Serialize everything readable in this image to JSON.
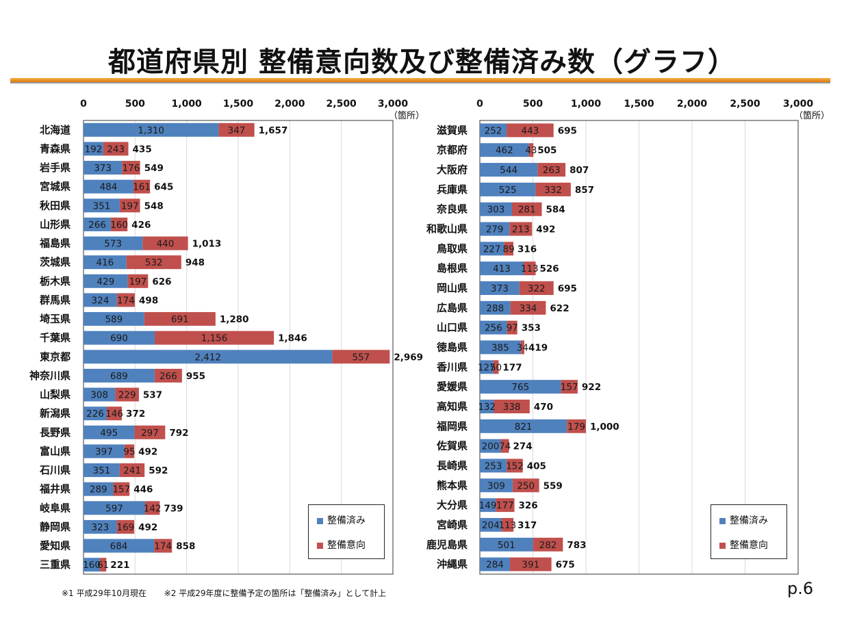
{
  "title": "都道府県別 整備意向数及び整備済み数（グラフ）",
  "colors": {
    "done": "#4f81bd",
    "intent": "#c0504d"
  },
  "legend": {
    "done_label": "整備済み",
    "intent_label": "整備意向"
  },
  "footnote": {
    "note1": "※1 平成29年10月現在",
    "note2": "※2 平成29年度に整備予定の箇所は「整備済み」として計上"
  },
  "page_number": "p.6",
  "chart_data": [
    {
      "type": "bar",
      "orientation": "horizontal",
      "stacked": true,
      "unit": "（箇所）",
      "xlim": [
        0,
        3000
      ],
      "ticks": [
        0,
        500,
        1000,
        1500,
        2000,
        2500,
        3000
      ],
      "tick_labels": [
        "0",
        "500",
        "1,000",
        "1,500",
        "2,000",
        "2,500",
        "3,000"
      ],
      "categories": [
        "北海道",
        "青森県",
        "岩手県",
        "宮城県",
        "秋田県",
        "山形県",
        "福島県",
        "茨城県",
        "栃木県",
        "群馬県",
        "埼玉県",
        "千葉県",
        "東京都",
        "神奈川県",
        "山梨県",
        "新潟県",
        "長野県",
        "富山県",
        "石川県",
        "福井県",
        "岐阜県",
        "静岡県",
        "愛知県",
        "三重県"
      ],
      "series": [
        {
          "name": "整備済み",
          "values": [
            1310,
            192,
            373,
            484,
            351,
            266,
            573,
            416,
            429,
            324,
            589,
            690,
            2412,
            689,
            308,
            226,
            495,
            397,
            351,
            289,
            597,
            323,
            684,
            160
          ]
        },
        {
          "name": "整備意向",
          "values": [
            347,
            243,
            176,
            161,
            197,
            160,
            440,
            532,
            197,
            174,
            691,
            1156,
            557,
            266,
            229,
            146,
            297,
            95,
            241,
            157,
            142,
            169,
            174,
            61
          ]
        }
      ],
      "totals": [
        1657,
        435,
        549,
        645,
        548,
        426,
        1013,
        948,
        626,
        498,
        1280,
        1846,
        2969,
        955,
        537,
        372,
        792,
        492,
        592,
        446,
        739,
        492,
        858,
        221
      ]
    },
    {
      "type": "bar",
      "orientation": "horizontal",
      "stacked": true,
      "unit": "（箇所）",
      "xlim": [
        0,
        3000
      ],
      "ticks": [
        0,
        500,
        1000,
        1500,
        2000,
        2500,
        3000
      ],
      "tick_labels": [
        "0",
        "500",
        "1,000",
        "1,500",
        "2,000",
        "2,500",
        "3,000"
      ],
      "categories": [
        "滋賀県",
        "京都府",
        "大阪府",
        "兵庫県",
        "奈良県",
        "和歌山県",
        "鳥取県",
        "島根県",
        "岡山県",
        "広島県",
        "山口県",
        "徳島県",
        "香川県",
        "愛媛県",
        "高知県",
        "福岡県",
        "佐賀県",
        "長崎県",
        "熊本県",
        "大分県",
        "宮崎県",
        "鹿児島県",
        "沖縄県"
      ],
      "series": [
        {
          "name": "整備済み",
          "values": [
            252,
            462,
            544,
            525,
            303,
            279,
            227,
            413,
            373,
            288,
            256,
            385,
            127,
            765,
            132,
            821,
            200,
            253,
            309,
            149,
            204,
            501,
            284
          ]
        },
        {
          "name": "整備意向",
          "values": [
            443,
            43,
            263,
            332,
            281,
            213,
            89,
            113,
            322,
            334,
            97,
            34,
            50,
            157,
            338,
            179,
            74,
            152,
            250,
            177,
            113,
            282,
            391
          ]
        }
      ],
      "totals": [
        695,
        505,
        807,
        857,
        584,
        492,
        316,
        526,
        695,
        622,
        353,
        419,
        177,
        922,
        470,
        1000,
        274,
        405,
        559,
        326,
        317,
        783,
        675
      ]
    }
  ]
}
